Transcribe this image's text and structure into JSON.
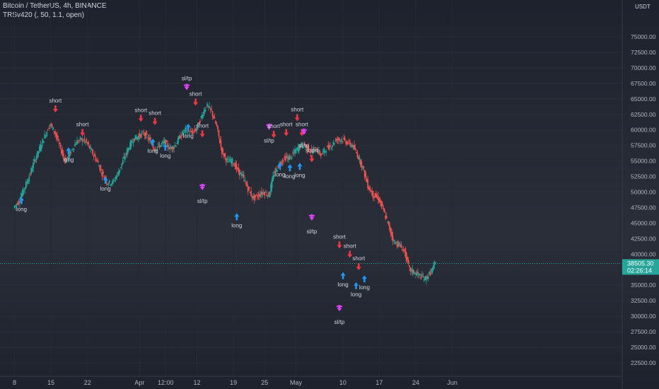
{
  "header": {
    "symbol_line": "Bitcoin / TetherUS, 4h, BINANCE",
    "indicator_line": "TRSv420 (, 50, 1.1, open)"
  },
  "price_axis": {
    "currency": "USDT",
    "last_price": "38505.30",
    "countdown": "02:26:14"
  },
  "colors": {
    "background": "#1e222d",
    "up": "#26a69a",
    "down": "#ef5350",
    "long_signal": "#2196f3",
    "short_signal": "#f23645",
    "sltp_signal": "#e040fb",
    "text": "#b2b5be"
  },
  "chart_data": {
    "type": "candlestick",
    "title": "Bitcoin / TetherUS, 4h, BINANCE",
    "ylim": [
      20700,
      76500
    ],
    "y_ticks": [
      22500,
      25000,
      27500,
      30000,
      32500,
      35000,
      37500,
      40000,
      42500,
      45000,
      47500,
      50000,
      52500,
      55000,
      57500,
      60000,
      62500,
      65000,
      67500,
      70000,
      72500,
      75000
    ],
    "x_index_range": [
      0,
      49
    ],
    "x_ticks": [
      {
        "label": "8",
        "index": 0
      },
      {
        "label": "15",
        "index": 7
      },
      {
        "label": "22",
        "index": 14
      },
      {
        "label": "Apr",
        "index": 24
      },
      {
        "label": "12:00",
        "index": 29
      },
      {
        "label": "12",
        "index": 35
      },
      {
        "label": "19",
        "index": 42
      },
      {
        "label": "25",
        "index": 48
      },
      {
        "label": "May",
        "index": 54
      },
      {
        "label": "10",
        "index": 63
      },
      {
        "label": "17",
        "index": 70
      },
      {
        "label": "24",
        "index": 77
      },
      {
        "label": "Jun",
        "index": 84
      }
    ],
    "close_path": [
      [
        0,
        47500
      ],
      [
        1,
        48500
      ],
      [
        2,
        50500
      ],
      [
        3,
        52500
      ],
      [
        4,
        55000
      ],
      [
        5,
        57000
      ],
      [
        6,
        59000
      ],
      [
        7,
        61000
      ],
      [
        8,
        59500
      ],
      [
        9,
        57000
      ],
      [
        10,
        55000
      ],
      [
        11,
        56500
      ],
      [
        12,
        58000
      ],
      [
        13,
        58500
      ],
      [
        14,
        58000
      ],
      [
        15,
        56500
      ],
      [
        16,
        55000
      ],
      [
        17,
        53000
      ],
      [
        18,
        51500
      ],
      [
        19,
        51500
      ],
      [
        20,
        53000
      ],
      [
        21,
        55000
      ],
      [
        22,
        57000
      ],
      [
        23,
        58500
      ],
      [
        24,
        59000
      ],
      [
        25,
        59500
      ],
      [
        26,
        58500
      ],
      [
        27,
        57000
      ],
      [
        28,
        57500
      ],
      [
        29,
        58000
      ],
      [
        30,
        57000
      ],
      [
        31,
        57500
      ],
      [
        32,
        59000
      ],
      [
        33,
        60000
      ],
      [
        34,
        59500
      ],
      [
        35,
        60000
      ],
      [
        36,
        62000
      ],
      [
        37,
        64000
      ],
      [
        38,
        63000
      ],
      [
        39,
        60500
      ],
      [
        40,
        56500
      ],
      [
        41,
        55000
      ],
      [
        42,
        55000
      ],
      [
        43,
        53500
      ],
      [
        44,
        52500
      ],
      [
        45,
        50500
      ],
      [
        46,
        49000
      ],
      [
        47,
        49500
      ],
      [
        48,
        50000
      ],
      [
        49,
        49500
      ],
      [
        50,
        53000
      ],
      [
        51,
        54500
      ],
      [
        52,
        55500
      ],
      [
        53,
        55500
      ],
      [
        54,
        56500
      ],
      [
        55,
        57500
      ],
      [
        56,
        57500
      ],
      [
        57,
        56500
      ],
      [
        58,
        57000
      ],
      [
        59,
        56000
      ],
      [
        60,
        57000
      ],
      [
        61,
        57500
      ],
      [
        62,
        58500
      ],
      [
        63,
        58500
      ],
      [
        64,
        58000
      ],
      [
        65,
        57500
      ],
      [
        66,
        56000
      ],
      [
        67,
        54000
      ],
      [
        68,
        51000
      ],
      [
        69,
        49500
      ],
      [
        70,
        49000
      ],
      [
        71,
        47000
      ],
      [
        72,
        44500
      ],
      [
        73,
        42000
      ],
      [
        74,
        41500
      ],
      [
        75,
        40500
      ],
      [
        76,
        37500
      ],
      [
        77,
        37000
      ],
      [
        78,
        36500
      ],
      [
        79,
        36000
      ],
      [
        80,
        37000
      ],
      [
        81,
        38500
      ]
    ],
    "signals": [
      {
        "type": "long",
        "index": 0.8,
        "price": 49200,
        "label": "long"
      },
      {
        "type": "short",
        "index": 7.3,
        "price": 62800,
        "label": "short"
      },
      {
        "type": "long",
        "index": 9.8,
        "price": 57200,
        "label": "long"
      },
      {
        "type": "short",
        "index": 12.5,
        "price": 59000,
        "label": "short"
      },
      {
        "type": "long",
        "index": 16.9,
        "price": 52500,
        "label": "long"
      },
      {
        "type": "short",
        "index": 23.7,
        "price": 61300,
        "label": "short"
      },
      {
        "type": "long",
        "index": 26.0,
        "price": 58600,
        "label": "long"
      },
      {
        "type": "short",
        "index": 26.4,
        "price": 60800,
        "label": "short"
      },
      {
        "type": "long",
        "index": 28.4,
        "price": 57800,
        "label": "long"
      },
      {
        "type": "sltp",
        "index": 32.5,
        "price": 66400,
        "label": "sl/tp"
      },
      {
        "type": "short",
        "index": 34.2,
        "price": 63900,
        "label": "short"
      },
      {
        "type": "long",
        "index": 32.8,
        "price": 61000,
        "label": "long"
      },
      {
        "type": "short",
        "index": 35.5,
        "price": 58800,
        "label": "short"
      },
      {
        "type": "sltp",
        "index": 35.5,
        "price": 50300,
        "label": "sl/tp"
      },
      {
        "type": "long",
        "index": 42.1,
        "price": 46600,
        "label": "long"
      },
      {
        "type": "sltp",
        "index": 48.3,
        "price": 60000,
        "label": "sl/tp"
      },
      {
        "type": "short",
        "index": 49.2,
        "price": 58700,
        "label": "short"
      },
      {
        "type": "long",
        "index": 50.4,
        "price": 54800,
        "label": "long"
      },
      {
        "type": "short",
        "index": 51.6,
        "price": 59000,
        "label": "short"
      },
      {
        "type": "long",
        "index": 52.3,
        "price": 54500,
        "label": "long"
      },
      {
        "type": "short",
        "index": 53.7,
        "price": 61400,
        "label": "short"
      },
      {
        "type": "short",
        "index": 54.6,
        "price": 59000,
        "label": "short"
      },
      {
        "type": "sltp",
        "index": 55.0,
        "price": 59200,
        "label": "sl/tp"
      },
      {
        "type": "long",
        "index": 54.2,
        "price": 54700,
        "label": "long"
      },
      {
        "type": "short",
        "index": 56.5,
        "price": 54800,
        "label": "short"
      },
      {
        "type": "sltp",
        "index": 56.5,
        "price": 45400,
        "label": "sl/tp"
      },
      {
        "type": "short",
        "index": 61.8,
        "price": 40900,
        "label": "short"
      },
      {
        "type": "long",
        "index": 62.5,
        "price": 37100,
        "label": "long"
      },
      {
        "type": "sltp",
        "index": 61.8,
        "price": 30800,
        "label": "sl/tp"
      },
      {
        "type": "short",
        "index": 63.8,
        "price": 39400,
        "label": "short"
      },
      {
        "type": "short",
        "index": 65.5,
        "price": 37400,
        "label": "short"
      },
      {
        "type": "long",
        "index": 65.0,
        "price": 35500,
        "label": "long"
      },
      {
        "type": "long",
        "index": 66.6,
        "price": 36600,
        "label": "long"
      }
    ]
  }
}
